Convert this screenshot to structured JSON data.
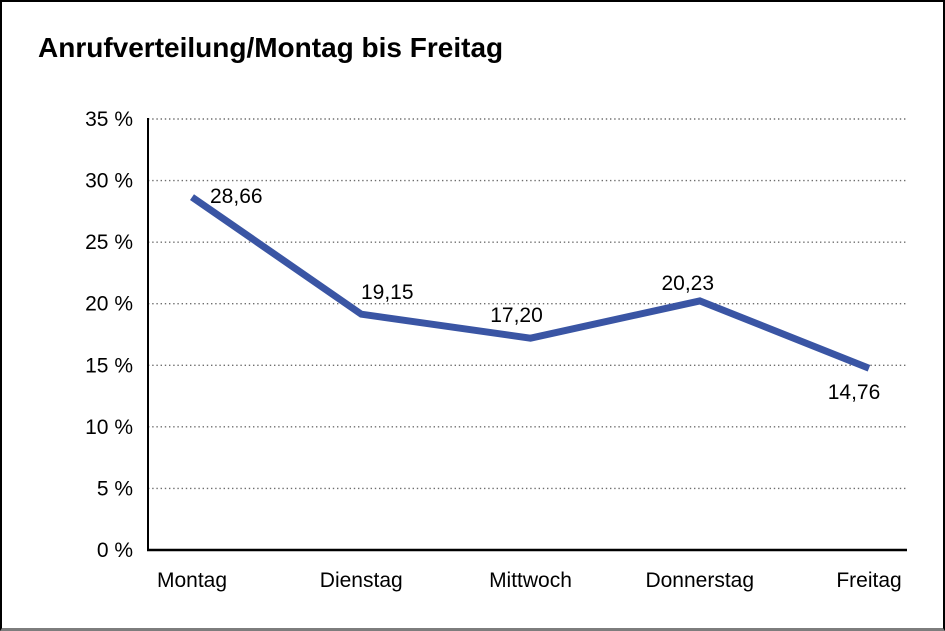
{
  "page": {
    "title": "Anrufverteilung/Montag bis Freitag"
  },
  "colors": {
    "line": "#3A55A4",
    "grid": "#6e6e6e",
    "axis": "#000000",
    "text": "#000000",
    "background": "#ffffff",
    "frame_border": "#000000",
    "frame_bottom": "#7d7d7d"
  },
  "chart_data": {
    "type": "line",
    "title": "Anrufverteilung/Montag bis Freitag",
    "categories": [
      "Montag",
      "Dienstag",
      "Mittwoch",
      "Donnerstag",
      "Freitag"
    ],
    "values": [
      28.66,
      19.15,
      17.2,
      20.23,
      14.76
    ],
    "value_labels": [
      "28,66",
      "19,15",
      "17,20",
      "20,23",
      "14,76"
    ],
    "xlabel": "",
    "ylabel": "",
    "ylim": [
      0,
      35
    ],
    "ytick_step": 5,
    "ytick_labels": [
      "0 %",
      "5 %",
      "10 %",
      "15 %",
      "20 %",
      "25 %",
      "30 %",
      "35 %"
    ],
    "grid": true,
    "gridline_style": "dotted",
    "legend": "none"
  }
}
